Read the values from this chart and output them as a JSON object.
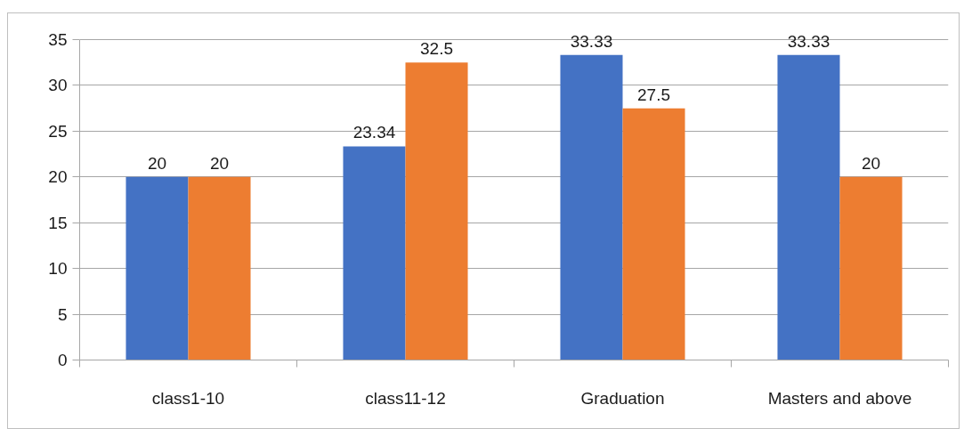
{
  "chart_data": {
    "type": "bar",
    "categories": [
      "class1-10",
      "class11-12",
      "Graduation",
      "Masters and above"
    ],
    "series": [
      {
        "color": "#4472c4",
        "values": [
          20,
          23.34,
          33.33,
          33.33
        ]
      },
      {
        "color": "#ed7d31",
        "values": [
          20,
          32.5,
          27.5,
          20
        ]
      }
    ],
    "ylim": [
      0,
      35
    ],
    "yticks": [
      0,
      5,
      10,
      15,
      20,
      25,
      30,
      35
    ],
    "grid": "y",
    "data_labels": true
  }
}
